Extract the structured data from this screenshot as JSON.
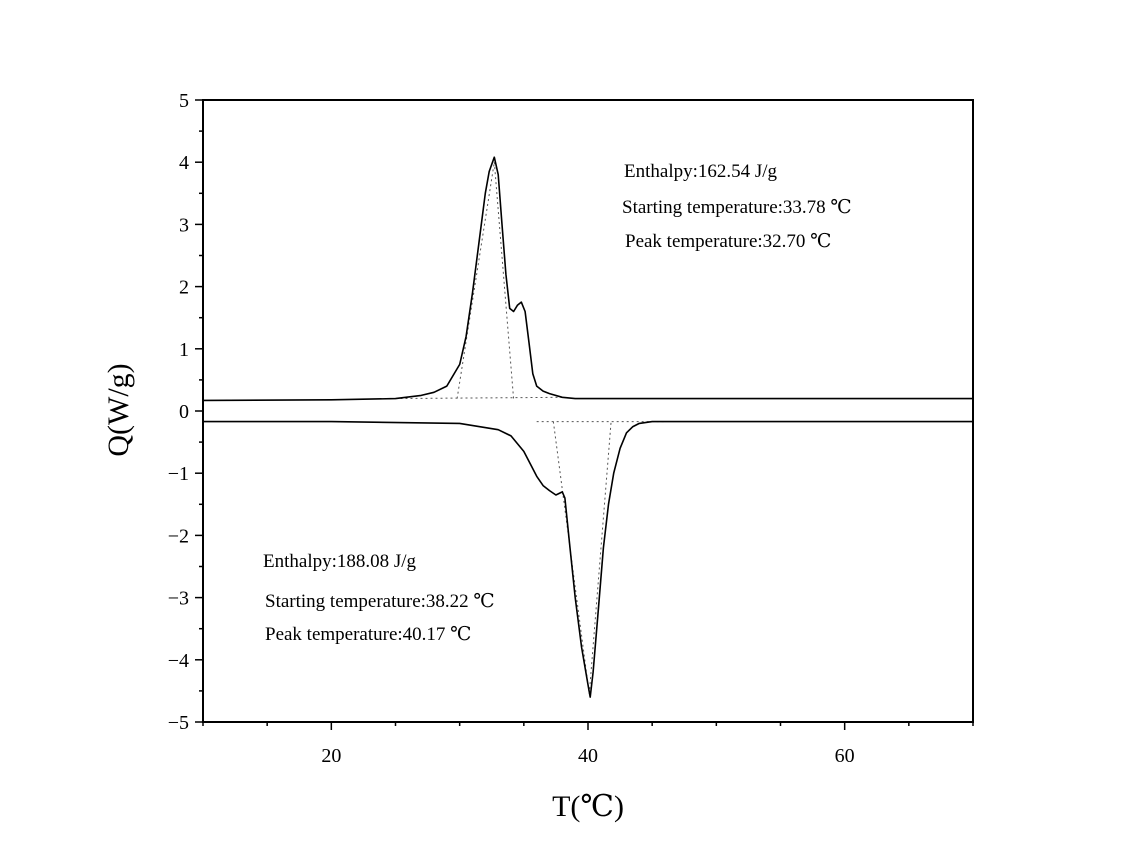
{
  "chart_data": {
    "type": "line",
    "xlabel": "T(℃)",
    "ylabel": "Q(W/g)",
    "xlim": [
      10,
      70
    ],
    "ylim": [
      -5,
      5
    ],
    "xticks": [
      20,
      40,
      60
    ],
    "yticks": [
      -5,
      -4,
      -3,
      -2,
      -1,
      0,
      1,
      2,
      3,
      4,
      5
    ],
    "grid": false,
    "series": [
      {
        "x": [
          10,
          20,
          25,
          27,
          28,
          29,
          30,
          30.5,
          31,
          31.5,
          32,
          32.3,
          32.7,
          33,
          33.3,
          33.6,
          33.9,
          34.2,
          34.5,
          34.8,
          35.1,
          35.4,
          35.7,
          36,
          36.5,
          37,
          38,
          39,
          40,
          50,
          60,
          70
        ],
        "y": [
          0.17,
          0.18,
          0.2,
          0.25,
          0.3,
          0.4,
          0.75,
          1.2,
          1.9,
          2.7,
          3.5,
          3.85,
          4.08,
          3.8,
          3.0,
          2.2,
          1.65,
          1.6,
          1.7,
          1.75,
          1.6,
          1.1,
          0.6,
          0.4,
          0.32,
          0.28,
          0.22,
          0.2,
          0.2,
          0.2,
          0.2,
          0.2
        ]
      },
      {
        "x": [
          10,
          20,
          30,
          33,
          34,
          35,
          35.5,
          36,
          36.5,
          37,
          37.5,
          38,
          38.2,
          38.6,
          39,
          39.5,
          40.0,
          40.17,
          40.4,
          40.8,
          41.2,
          41.6,
          42,
          42.5,
          43,
          43.5,
          44,
          45,
          50,
          60,
          70
        ],
        "y": [
          -0.17,
          -0.17,
          -0.2,
          -0.3,
          -0.4,
          -0.65,
          -0.85,
          -1.05,
          -1.2,
          -1.28,
          -1.35,
          -1.3,
          -1.4,
          -2.2,
          -3.0,
          -3.8,
          -4.4,
          -4.6,
          -4.2,
          -3.2,
          -2.2,
          -1.5,
          -1.0,
          -0.6,
          -0.35,
          -0.25,
          -0.2,
          -0.17,
          -0.17,
          -0.17,
          -0.17
        ]
      }
    ],
    "annotations": {
      "upper": {
        "enthalpy": "Enthalpy:162.54 J/g",
        "start": "Starting temperature:33.78 ℃",
        "peak": "Peak temperature:32.70 ℃"
      },
      "lower": {
        "enthalpy": "Enthalpy:188.08 J/g",
        "start": "Starting temperature:38.22 ℃",
        "peak": "Peak temperature:40.17 ℃"
      }
    }
  }
}
